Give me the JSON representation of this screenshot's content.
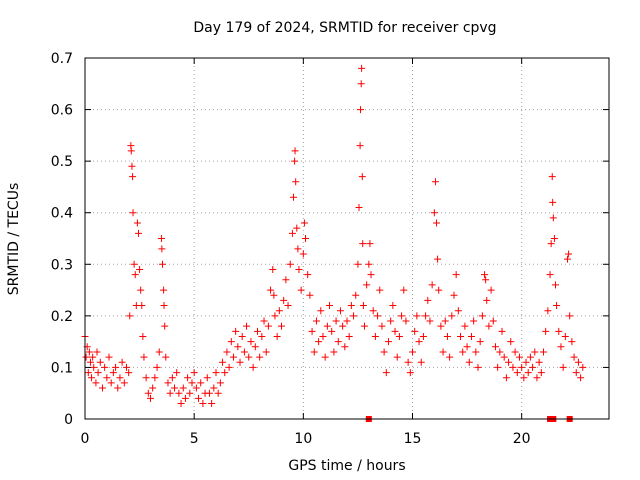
{
  "chart_data": {
    "type": "scatter",
    "title": "Day 179 of 2024, SRMTID for receiver cpvg",
    "xlabel": "GPS time / hours",
    "ylabel": "SRMTID / TECUs",
    "xlim": [
      0,
      24
    ],
    "ylim": [
      0,
      0.7
    ],
    "xticks": [
      "0",
      "5",
      "10",
      "15",
      "20"
    ],
    "xtick_values": [
      0,
      5,
      10,
      15,
      20
    ],
    "yticks": [
      "0",
      "0.1",
      "0.2",
      "0.3",
      "0.4",
      "0.5",
      "0.6",
      "0.7"
    ],
    "ytick_values": [
      0,
      0.1,
      0.2,
      0.3,
      0.4,
      0.5,
      0.6,
      0.7
    ],
    "grid": true,
    "marker": "plus",
    "color": "#ff0000",
    "series": [
      {
        "name": "SRMTID",
        "points": [
          [
            0.0,
            0.16
          ],
          [
            0.05,
            0.12
          ],
          [
            0.1,
            0.14
          ],
          [
            0.15,
            0.09
          ],
          [
            0.2,
            0.13
          ],
          [
            0.25,
            0.11
          ],
          [
            0.3,
            0.08
          ],
          [
            0.35,
            0.12
          ],
          [
            0.4,
            0.1
          ],
          [
            0.5,
            0.07
          ],
          [
            0.55,
            0.13
          ],
          [
            0.6,
            0.09
          ],
          [
            0.7,
            0.11
          ],
          [
            0.8,
            0.06
          ],
          [
            0.9,
            0.1
          ],
          [
            1.0,
            0.08
          ],
          [
            1.1,
            0.12
          ],
          [
            1.2,
            0.07
          ],
          [
            1.3,
            0.09
          ],
          [
            1.4,
            0.1
          ],
          [
            1.5,
            0.06
          ],
          [
            1.6,
            0.08
          ],
          [
            1.7,
            0.11
          ],
          [
            1.8,
            0.07
          ],
          [
            1.9,
            0.1
          ],
          [
            2.0,
            0.09
          ],
          [
            2.05,
            0.2
          ],
          [
            2.1,
            0.53
          ],
          [
            2.12,
            0.52
          ],
          [
            2.15,
            0.49
          ],
          [
            2.18,
            0.47
          ],
          [
            2.2,
            0.4
          ],
          [
            2.25,
            0.3
          ],
          [
            2.3,
            0.28
          ],
          [
            2.35,
            0.22
          ],
          [
            2.4,
            0.38
          ],
          [
            2.45,
            0.36
          ],
          [
            2.5,
            0.29
          ],
          [
            2.55,
            0.25
          ],
          [
            2.6,
            0.22
          ],
          [
            2.65,
            0.16
          ],
          [
            2.7,
            0.12
          ],
          [
            2.8,
            0.08
          ],
          [
            2.9,
            0.05
          ],
          [
            3.0,
            0.04
          ],
          [
            3.1,
            0.06
          ],
          [
            3.2,
            0.08
          ],
          [
            3.3,
            0.1
          ],
          [
            3.4,
            0.13
          ],
          [
            3.5,
            0.35
          ],
          [
            3.52,
            0.33
          ],
          [
            3.55,
            0.3
          ],
          [
            3.6,
            0.25
          ],
          [
            3.62,
            0.22
          ],
          [
            3.65,
            0.18
          ],
          [
            3.7,
            0.12
          ],
          [
            3.8,
            0.07
          ],
          [
            3.9,
            0.05
          ],
          [
            4.0,
            0.08
          ],
          [
            4.1,
            0.06
          ],
          [
            4.2,
            0.09
          ],
          [
            4.3,
            0.05
          ],
          [
            4.4,
            0.03
          ],
          [
            4.5,
            0.06
          ],
          [
            4.6,
            0.04
          ],
          [
            4.7,
            0.08
          ],
          [
            4.8,
            0.05
          ],
          [
            4.9,
            0.07
          ],
          [
            5.0,
            0.09
          ],
          [
            5.1,
            0.06
          ],
          [
            5.2,
            0.04
          ],
          [
            5.3,
            0.07
          ],
          [
            5.4,
            0.03
          ],
          [
            5.5,
            0.05
          ],
          [
            5.6,
            0.08
          ],
          [
            5.7,
            0.05
          ],
          [
            5.8,
            0.03
          ],
          [
            5.9,
            0.06
          ],
          [
            6.0,
            0.09
          ],
          [
            6.1,
            0.05
          ],
          [
            6.2,
            0.07
          ],
          [
            6.3,
            0.11
          ],
          [
            6.4,
            0.09
          ],
          [
            6.5,
            0.13
          ],
          [
            6.6,
            0.1
          ],
          [
            6.7,
            0.15
          ],
          [
            6.8,
            0.12
          ],
          [
            6.9,
            0.17
          ],
          [
            7.0,
            0.14
          ],
          [
            7.1,
            0.11
          ],
          [
            7.2,
            0.16
          ],
          [
            7.3,
            0.13
          ],
          [
            7.4,
            0.18
          ],
          [
            7.5,
            0.12
          ],
          [
            7.6,
            0.15
          ],
          [
            7.7,
            0.1
          ],
          [
            7.8,
            0.14
          ],
          [
            7.9,
            0.17
          ],
          [
            8.0,
            0.12
          ],
          [
            8.1,
            0.16
          ],
          [
            8.2,
            0.19
          ],
          [
            8.3,
            0.13
          ],
          [
            8.4,
            0.18
          ],
          [
            8.5,
            0.25
          ],
          [
            8.6,
            0.29
          ],
          [
            8.65,
            0.24
          ],
          [
            8.7,
            0.2
          ],
          [
            8.8,
            0.16
          ],
          [
            8.9,
            0.21
          ],
          [
            9.0,
            0.18
          ],
          [
            9.1,
            0.23
          ],
          [
            9.2,
            0.27
          ],
          [
            9.3,
            0.22
          ],
          [
            9.4,
            0.3
          ],
          [
            9.5,
            0.36
          ],
          [
            9.55,
            0.43
          ],
          [
            9.6,
            0.5
          ],
          [
            9.62,
            0.52
          ],
          [
            9.65,
            0.46
          ],
          [
            9.7,
            0.37
          ],
          [
            9.75,
            0.33
          ],
          [
            9.8,
            0.29
          ],
          [
            9.9,
            0.25
          ],
          [
            10.0,
            0.32
          ],
          [
            10.05,
            0.38
          ],
          [
            10.1,
            0.35
          ],
          [
            10.2,
            0.28
          ],
          [
            10.3,
            0.24
          ],
          [
            10.4,
            0.17
          ],
          [
            10.5,
            0.13
          ],
          [
            10.6,
            0.19
          ],
          [
            10.7,
            0.15
          ],
          [
            10.8,
            0.21
          ],
          [
            10.9,
            0.16
          ],
          [
            11.0,
            0.12
          ],
          [
            11.1,
            0.18
          ],
          [
            11.2,
            0.22
          ],
          [
            11.3,
            0.17
          ],
          [
            11.4,
            0.13
          ],
          [
            11.5,
            0.19
          ],
          [
            11.6,
            0.15
          ],
          [
            11.7,
            0.21
          ],
          [
            11.8,
            0.18
          ],
          [
            11.9,
            0.14
          ],
          [
            12.0,
            0.19
          ],
          [
            12.1,
            0.16
          ],
          [
            12.2,
            0.22
          ],
          [
            12.3,
            0.2
          ],
          [
            12.4,
            0.24
          ],
          [
            12.5,
            0.3
          ],
          [
            12.55,
            0.41
          ],
          [
            12.6,
            0.53
          ],
          [
            12.62,
            0.6
          ],
          [
            12.65,
            0.65
          ],
          [
            12.67,
            0.68
          ],
          [
            12.7,
            0.47
          ],
          [
            12.72,
            0.34
          ],
          [
            12.75,
            0.22
          ],
          [
            12.8,
            0.18
          ],
          [
            12.9,
            0.26
          ],
          [
            13.0,
            0.3
          ],
          [
            13.05,
            0.34
          ],
          [
            13.1,
            0.28
          ],
          [
            13.2,
            0.21
          ],
          [
            13.3,
            0.16
          ],
          [
            13.4,
            0.2
          ],
          [
            13.5,
            0.25
          ],
          [
            13.6,
            0.18
          ],
          [
            13.7,
            0.13
          ],
          [
            13.8,
            0.09
          ],
          [
            13.9,
            0.15
          ],
          [
            14.0,
            0.19
          ],
          [
            14.1,
            0.22
          ],
          [
            14.2,
            0.17
          ],
          [
            14.3,
            0.12
          ],
          [
            14.4,
            0.16
          ],
          [
            14.5,
            0.2
          ],
          [
            14.6,
            0.25
          ],
          [
            14.7,
            0.19
          ],
          [
            14.8,
            0.11
          ],
          [
            14.9,
            0.09
          ],
          [
            15.0,
            0.13
          ],
          [
            15.1,
            0.17
          ],
          [
            15.2,
            0.2
          ],
          [
            15.3,
            0.15
          ],
          [
            15.4,
            0.11
          ],
          [
            15.5,
            0.16
          ],
          [
            15.6,
            0.2
          ],
          [
            15.7,
            0.23
          ],
          [
            15.8,
            0.19
          ],
          [
            15.9,
            0.26
          ],
          [
            16.0,
            0.4
          ],
          [
            16.05,
            0.46
          ],
          [
            16.1,
            0.38
          ],
          [
            16.15,
            0.31
          ],
          [
            16.2,
            0.25
          ],
          [
            16.3,
            0.18
          ],
          [
            16.4,
            0.13
          ],
          [
            16.5,
            0.19
          ],
          [
            16.6,
            0.16
          ],
          [
            16.7,
            0.12
          ],
          [
            16.8,
            0.2
          ],
          [
            16.9,
            0.24
          ],
          [
            17.0,
            0.28
          ],
          [
            17.1,
            0.21
          ],
          [
            17.2,
            0.16
          ],
          [
            17.3,
            0.13
          ],
          [
            17.4,
            0.18
          ],
          [
            17.5,
            0.14
          ],
          [
            17.6,
            0.11
          ],
          [
            17.7,
            0.16
          ],
          [
            17.8,
            0.19
          ],
          [
            17.9,
            0.13
          ],
          [
            18.0,
            0.1
          ],
          [
            18.1,
            0.15
          ],
          [
            18.2,
            0.2
          ],
          [
            18.3,
            0.28
          ],
          [
            18.35,
            0.27
          ],
          [
            18.4,
            0.23
          ],
          [
            18.5,
            0.18
          ],
          [
            18.6,
            0.25
          ],
          [
            18.7,
            0.19
          ],
          [
            18.8,
            0.14
          ],
          [
            18.9,
            0.1
          ],
          [
            19.0,
            0.13
          ],
          [
            19.1,
            0.17
          ],
          [
            19.2,
            0.12
          ],
          [
            19.3,
            0.08
          ],
          [
            19.4,
            0.11
          ],
          [
            19.5,
            0.15
          ],
          [
            19.6,
            0.1
          ],
          [
            19.7,
            0.13
          ],
          [
            19.8,
            0.09
          ],
          [
            19.9,
            0.12
          ],
          [
            20.0,
            0.1
          ],
          [
            20.1,
            0.08
          ],
          [
            20.2,
            0.11
          ],
          [
            20.3,
            0.09
          ],
          [
            20.4,
            0.12
          ],
          [
            20.5,
            0.1
          ],
          [
            20.6,
            0.13
          ],
          [
            20.7,
            0.08
          ],
          [
            20.8,
            0.11
          ],
          [
            20.9,
            0.09
          ],
          [
            21.0,
            0.13
          ],
          [
            21.1,
            0.17
          ],
          [
            21.2,
            0.21
          ],
          [
            21.3,
            0.28
          ],
          [
            21.35,
            0.34
          ],
          [
            21.4,
            0.47
          ],
          [
            21.42,
            0.42
          ],
          [
            21.45,
            0.39
          ],
          [
            21.5,
            0.35
          ],
          [
            21.55,
            0.26
          ],
          [
            21.6,
            0.22
          ],
          [
            21.7,
            0.17
          ],
          [
            21.8,
            0.14
          ],
          [
            21.9,
            0.1
          ],
          [
            22.0,
            0.16
          ],
          [
            22.1,
            0.31
          ],
          [
            22.15,
            0.32
          ],
          [
            22.2,
            0.2
          ],
          [
            22.3,
            0.15
          ],
          [
            22.4,
            0.12
          ],
          [
            22.5,
            0.09
          ],
          [
            22.6,
            0.11
          ],
          [
            22.7,
            0.08
          ],
          [
            22.8,
            0.1
          ]
        ]
      }
    ],
    "zero_markers_x": [
      13.0,
      21.3,
      21.45,
      22.2
    ]
  }
}
